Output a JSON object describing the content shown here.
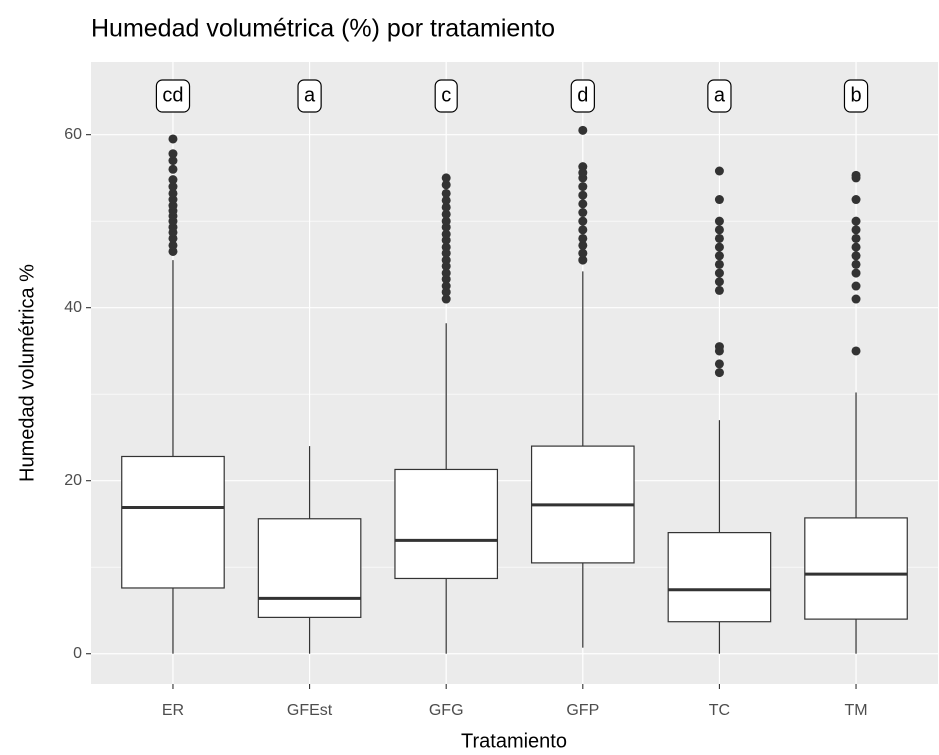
{
  "chart_data": {
    "type": "boxplot",
    "title": "Humedad volumétrica (%) por tratamiento",
    "x_label": "Tratamiento",
    "y_label": "Humedad volumétrica %",
    "categories": [
      "ER",
      "GFEst",
      "GFG",
      "GFP",
      "TC",
      "TM"
    ],
    "min": [
      0,
      0,
      0,
      0.7,
      0,
      0
    ],
    "q1": [
      7.6,
      4.2,
      8.7,
      10.5,
      3.7,
      4.0
    ],
    "median": [
      16.9,
      6.4,
      13.1,
      17.2,
      7.4,
      9.2
    ],
    "q3": [
      22.8,
      15.6,
      21.3,
      24.0,
      14.0,
      15.7
    ],
    "max": [
      45.5,
      24.0,
      38.2,
      44.2,
      27.0,
      30.2
    ],
    "outliers": [
      [
        46.5,
        47.2,
        48,
        48.7,
        49.3,
        50,
        50.6,
        51.2,
        51.8,
        52.5,
        53.2,
        54,
        54.8,
        56,
        57,
        57.8,
        59.5
      ],
      [],
      [
        41,
        41.8,
        42.5,
        43.3,
        44,
        44.8,
        45.5,
        46.3,
        47,
        47.8,
        48.5,
        49.3,
        50,
        50.8,
        51.6,
        52.4,
        53.2,
        54.2,
        55
      ],
      [
        45.5,
        46.3,
        47.2,
        48,
        49,
        50,
        51,
        52,
        53,
        54,
        55,
        55.6,
        56.3,
        60.5
      ],
      [
        32.5,
        33.5,
        35,
        35.5,
        42,
        43,
        44,
        45,
        46,
        47,
        48,
        49,
        50,
        52.5,
        55.8
      ],
      [
        35,
        41,
        42.5,
        44,
        45,
        46,
        47,
        48,
        49,
        50,
        52.5,
        55,
        55.3
      ]
    ],
    "group_letters": [
      "cd",
      "a",
      "c",
      "d",
      "a",
      "b"
    ],
    "ylim": [
      -3.5,
      68.4
    ],
    "yticks": [
      0,
      20,
      40,
      60
    ],
    "minor_grid": [
      10,
      30,
      50
    ],
    "grid": true
  }
}
